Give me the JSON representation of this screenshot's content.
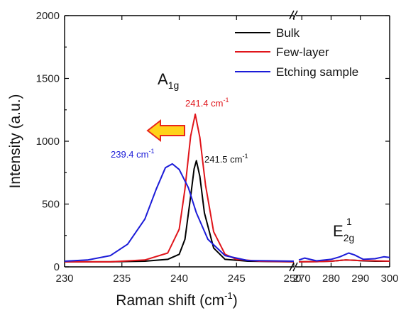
{
  "chart_data": {
    "type": "line",
    "title": "",
    "xlabel": "Raman shift (cm",
    "xlabel_sup": "-1",
    "xlabel_close": ")",
    "ylabel": "Intensity (a.u.)",
    "xlim_segments": [
      [
        230,
        250
      ],
      [
        268,
        300
      ]
    ],
    "ylim": [
      0,
      2000
    ],
    "x_ticks_left": [
      "230",
      "235",
      "240",
      "245",
      "250"
    ],
    "x_ticks_right": [
      "270",
      "280",
      "290",
      "300"
    ],
    "y_ticks": [
      "0",
      "500",
      "1000",
      "1500",
      "2000"
    ],
    "legend_position": "top-right",
    "series": [
      {
        "name": "Bulk",
        "color": "#000000",
        "x": [
          230,
          234,
          237,
          239,
          240,
          240.5,
          241,
          241.3,
          241.5,
          241.8,
          242.2,
          243,
          244,
          246,
          250,
          269,
          275,
          280,
          285,
          288,
          291,
          295,
          300
        ],
        "y": [
          40,
          40,
          45,
          60,
          100,
          220,
          560,
          780,
          845,
          720,
          430,
          150,
          60,
          45,
          40,
          40,
          42,
          45,
          55,
          52,
          48,
          45,
          45
        ]
      },
      {
        "name": "Few-layer",
        "color": "#e0151b",
        "x": [
          230,
          234,
          237,
          239,
          240,
          240.5,
          241,
          241.4,
          241.8,
          242.3,
          243,
          244,
          245,
          247,
          250,
          269,
          275,
          280,
          285,
          290,
          295,
          300
        ],
        "y": [
          40,
          40,
          55,
          110,
          300,
          620,
          1040,
          1215,
          1030,
          650,
          280,
          100,
          60,
          45,
          40,
          40,
          42,
          45,
          55,
          50,
          48,
          45
        ]
      },
      {
        "name": "Etching sample",
        "color": "#1b1bd8",
        "x": [
          230,
          232,
          234,
          235.5,
          237,
          238,
          238.8,
          239.4,
          240,
          240.8,
          241.5,
          242.5,
          244,
          246,
          250,
          269,
          271,
          275,
          280,
          283,
          286,
          288,
          291,
          295,
          298,
          300
        ],
        "y": [
          45,
          55,
          90,
          180,
          380,
          620,
          790,
          820,
          775,
          630,
          430,
          220,
          90,
          50,
          45,
          55,
          70,
          48,
          60,
          80,
          110,
          95,
          60,
          65,
          80,
          75
        ]
      }
    ],
    "annotations": {
      "peak_a1g": "A",
      "peak_a1g_sub": "1g",
      "peak_e2g": "E",
      "peak_e2g_sub": "2g",
      "peak_e2g_sup": "1",
      "few_layer_peak": "241.4 cm",
      "few_layer_peak_sup": "-1",
      "etching_peak": "239.4 cm",
      "etching_peak_sup": "-1",
      "bulk_peak": "241.5 cm",
      "bulk_peak_sup": "-1"
    },
    "arrow_colors": {
      "fill": "#ffd21a",
      "stroke": "#e8261c"
    }
  }
}
